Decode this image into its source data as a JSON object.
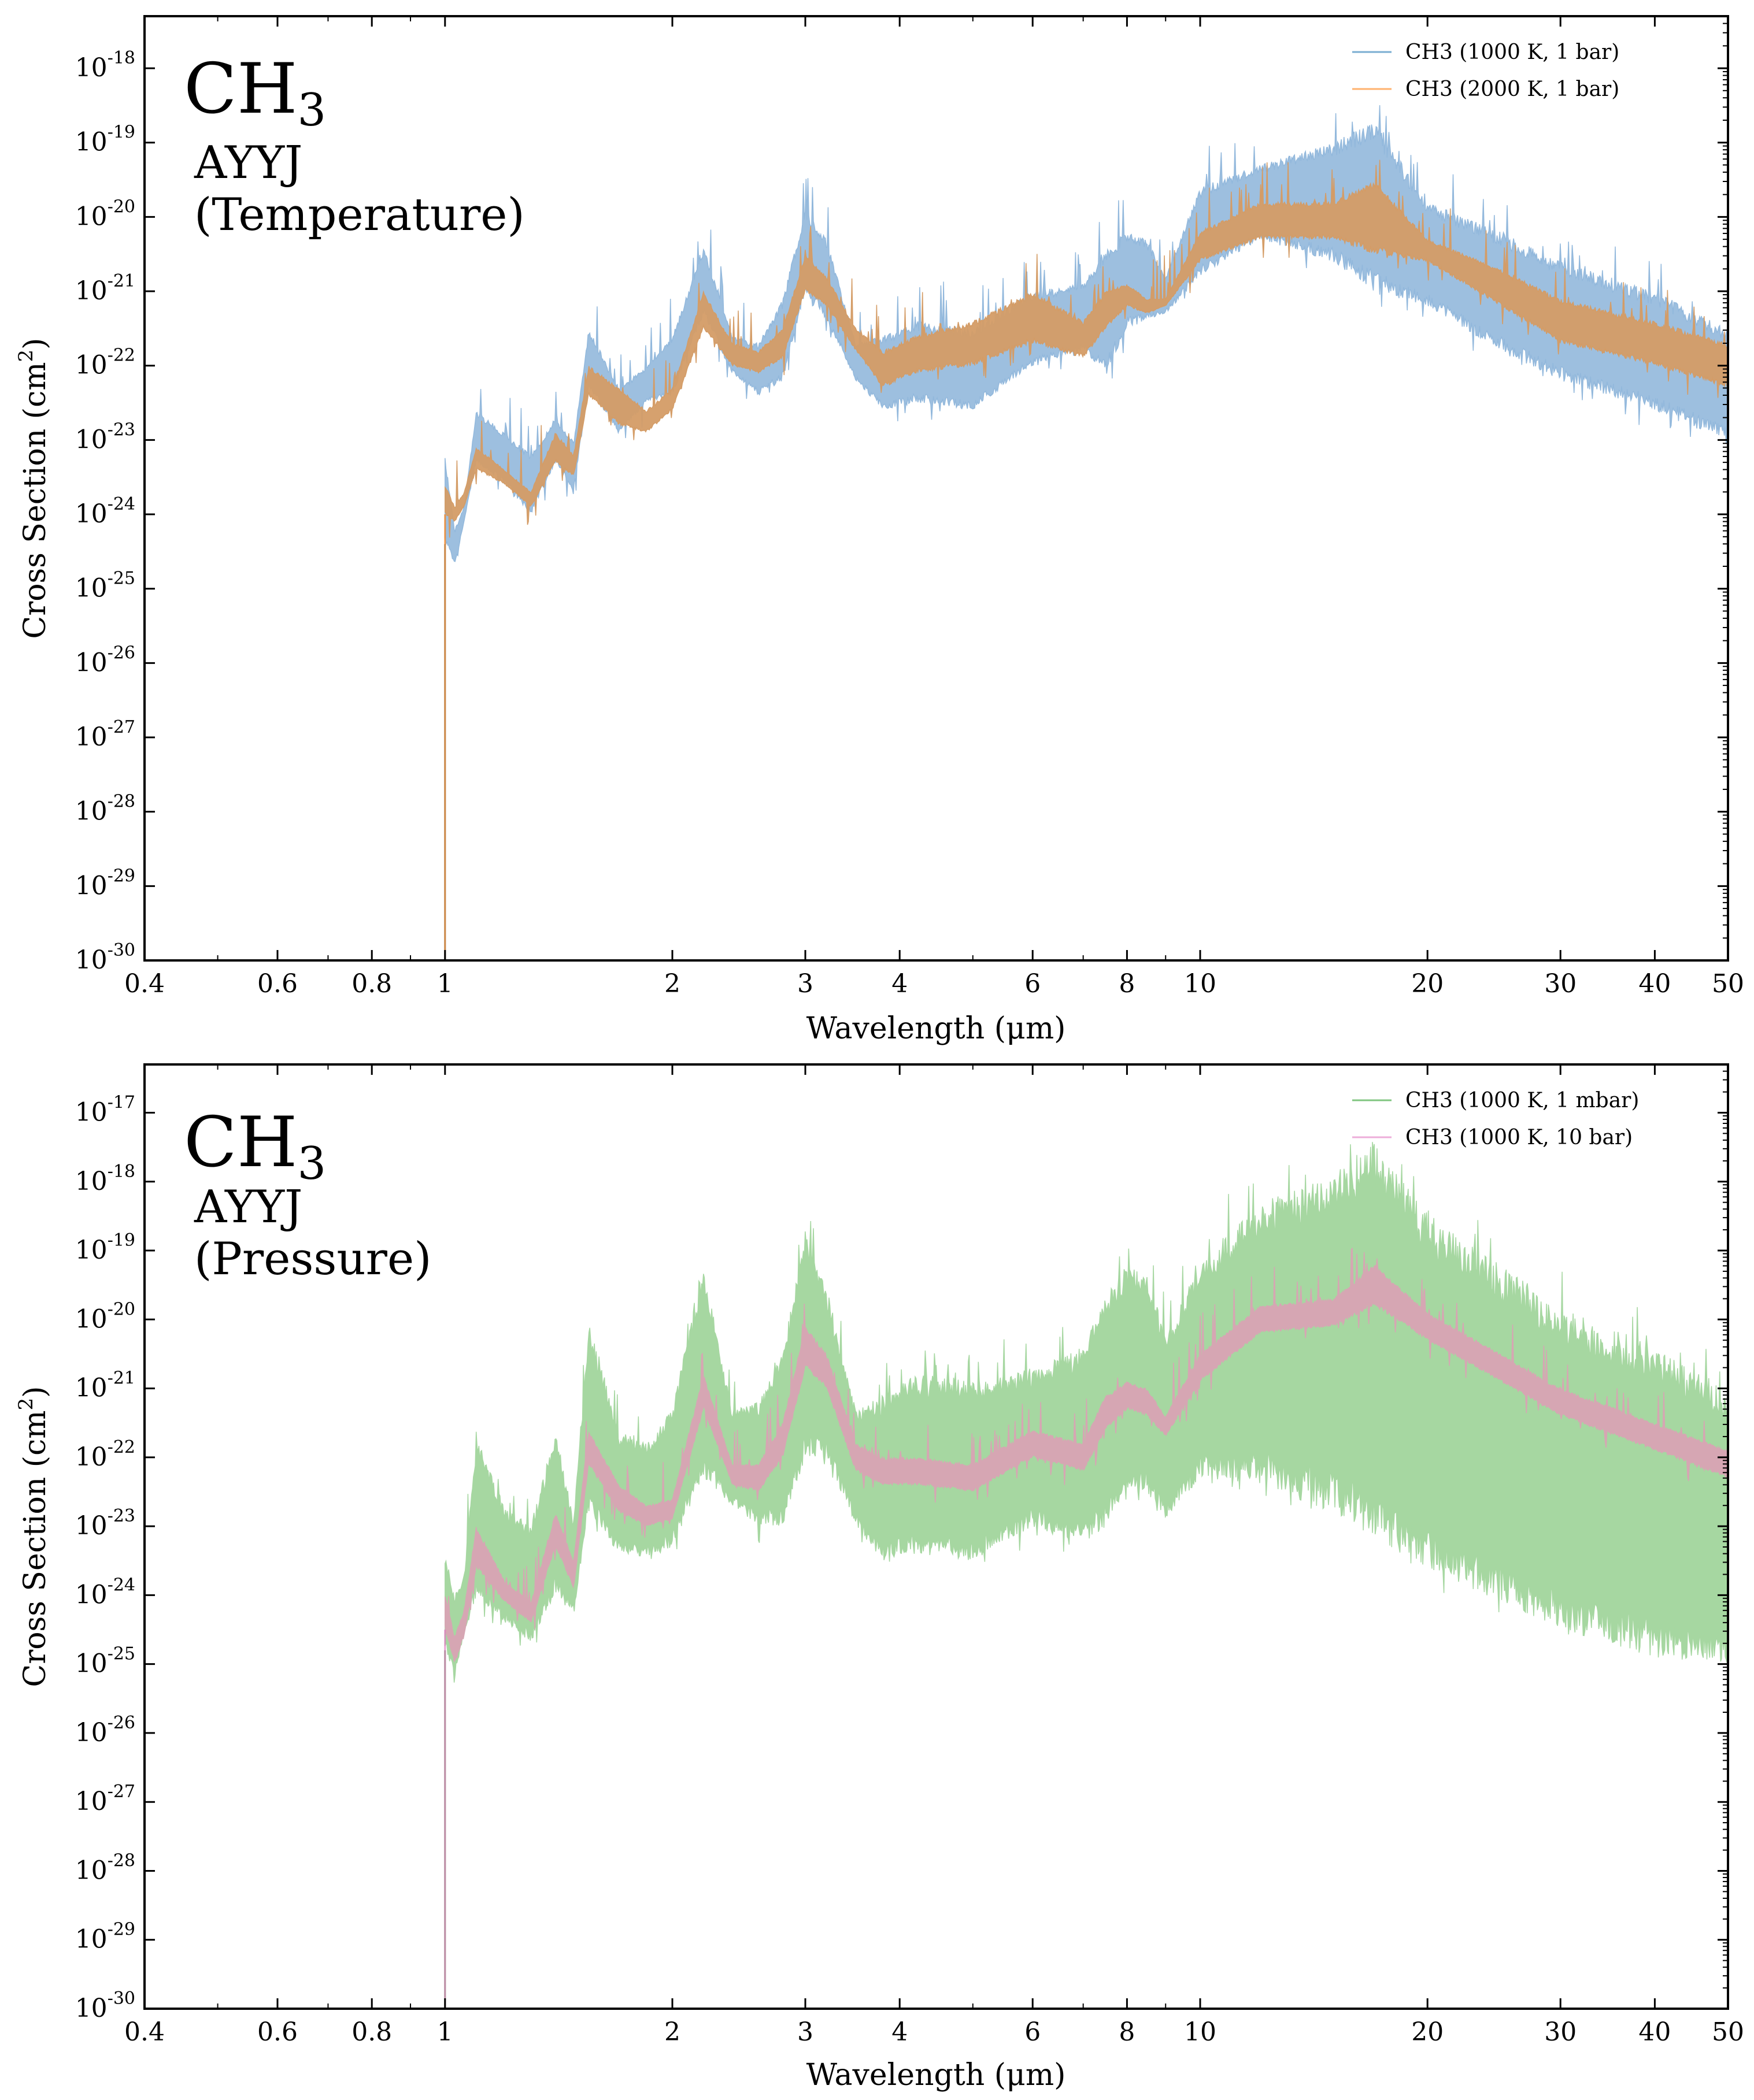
{
  "chart_data": [
    {
      "type": "area",
      "panel": "temperature",
      "annotation": {
        "species": "CH",
        "species_sub": "3",
        "line_list": "AYYJ",
        "variant": "(Temperature)"
      },
      "xlabel": "Wavelength (μm)",
      "ylabel": "Cross Section (cm²)",
      "ylabel_parts": {
        "main": "Cross Section (cm",
        "sup": "2",
        "close": ")"
      },
      "xscale": "log",
      "yscale": "log",
      "xlim": [
        0.4,
        50
      ],
      "ylim_exp": [
        -30,
        -17.3
      ],
      "xticks": [
        0.4,
        0.6,
        0.8,
        1,
        2,
        3,
        4,
        6,
        8,
        10,
        20,
        30,
        40,
        50
      ],
      "xtick_labels": [
        "0.4",
        "0.6",
        "0.8",
        "1",
        "2",
        "3",
        "4",
        "6",
        "8",
        "10",
        "20",
        "30",
        "40",
        "50"
      ],
      "yticks_exp": [
        -30,
        -29,
        -28,
        -27,
        -26,
        -25,
        -24,
        -23,
        -22,
        -21,
        -20,
        -19,
        -18
      ],
      "legend_position": "top-right",
      "series": [
        {
          "name": "CH3 (1000 K, 1 bar)",
          "color": "#1f77b4",
          "fill": "#92b8dc",
          "opacity": 0.9,
          "x": [
            1.0,
            1.03,
            1.06,
            1.1,
            1.2,
            1.3,
            1.4,
            1.48,
            1.55,
            1.7,
            1.85,
            2.0,
            2.2,
            2.4,
            2.6,
            2.8,
            3.0,
            3.2,
            3.5,
            3.8,
            4.2,
            5.0,
            6.0,
            7.0,
            7.5,
            8.0,
            8.5,
            9.0,
            10.0,
            12.0,
            15.0,
            17.0,
            20.0,
            25.0,
            30.0,
            40.0,
            50.0
          ],
          "upper_exp": [
            -23.2,
            -24.2,
            -23.9,
            -22.6,
            -22.9,
            -23.2,
            -22.7,
            -23.0,
            -21.5,
            -22.3,
            -22.0,
            -21.6,
            -20.4,
            -21.6,
            -21.7,
            -21.1,
            -19.9,
            -20.3,
            -21.7,
            -21.6,
            -21.4,
            -21.5,
            -21.0,
            -20.9,
            -20.4,
            -20.2,
            -20.3,
            -20.8,
            -19.6,
            -19.3,
            -19.0,
            -18.7,
            -19.8,
            -20.2,
            -20.6,
            -21.0,
            -21.5
          ],
          "lower_exp": [
            -24.4,
            -24.7,
            -24.1,
            -23.3,
            -23.6,
            -24.0,
            -23.3,
            -23.7,
            -22.3,
            -22.9,
            -22.5,
            -22.4,
            -21.3,
            -22.1,
            -22.4,
            -22.2,
            -21.0,
            -21.4,
            -22.2,
            -22.6,
            -22.5,
            -22.6,
            -22.0,
            -21.8,
            -22.1,
            -21.5,
            -21.4,
            -21.3,
            -20.8,
            -20.3,
            -20.6,
            -21.0,
            -21.2,
            -21.8,
            -22.2,
            -22.6,
            -23.0
          ]
        },
        {
          "name": "CH3 (2000 K, 1 bar)",
          "color": "#ff7f0e",
          "fill": "#d49c66",
          "opacity": 0.95,
          "x": [
            1.0,
            1.03,
            1.06,
            1.1,
            1.2,
            1.3,
            1.4,
            1.48,
            1.55,
            1.7,
            1.85,
            2.0,
            2.2,
            2.4,
            2.6,
            2.8,
            3.0,
            3.2,
            3.5,
            3.8,
            4.2,
            5.0,
            6.0,
            7.0,
            7.5,
            8.0,
            8.5,
            9.0,
            10.0,
            12.0,
            15.0,
            17.0,
            20.0,
            25.0,
            30.0,
            40.0,
            50.0
          ],
          "upper_exp": [
            -23.6,
            -23.9,
            -23.7,
            -23.1,
            -23.4,
            -23.7,
            -22.9,
            -23.2,
            -22.0,
            -22.3,
            -22.6,
            -22.3,
            -21.0,
            -21.7,
            -21.8,
            -21.5,
            -20.5,
            -20.8,
            -21.5,
            -21.8,
            -21.6,
            -21.4,
            -21.0,
            -21.4,
            -21.0,
            -20.9,
            -21.1,
            -21.1,
            -20.2,
            -19.8,
            -19.8,
            -19.5,
            -20.3,
            -20.7,
            -21.1,
            -21.4,
            -21.7
          ],
          "lower_exp": [
            -24.0,
            -24.1,
            -23.9,
            -23.4,
            -23.6,
            -23.9,
            -23.3,
            -23.5,
            -22.4,
            -22.8,
            -22.9,
            -22.6,
            -21.5,
            -22.0,
            -22.1,
            -21.9,
            -21.0,
            -21.2,
            -21.8,
            -22.3,
            -22.1,
            -22.0,
            -21.7,
            -21.9,
            -21.5,
            -21.2,
            -21.3,
            -21.2,
            -20.6,
            -20.3,
            -20.3,
            -20.5,
            -20.6,
            -21.2,
            -21.7,
            -22.0,
            -22.3
          ]
        }
      ]
    },
    {
      "type": "area",
      "panel": "pressure",
      "annotation": {
        "species": "CH",
        "species_sub": "3",
        "line_list": "AYYJ",
        "variant": "(Pressure)"
      },
      "xlabel": "Wavelength (μm)",
      "ylabel": "Cross Section (cm²)",
      "ylabel_parts": {
        "main": "Cross Section (cm",
        "sup": "2",
        "close": ")"
      },
      "xscale": "log",
      "yscale": "log",
      "xlim": [
        0.4,
        50
      ],
      "ylim_exp": [
        -30,
        -16.3
      ],
      "xticks": [
        0.4,
        0.6,
        0.8,
        1,
        2,
        3,
        4,
        6,
        8,
        10,
        20,
        30,
        40,
        50
      ],
      "xtick_labels": [
        "0.4",
        "0.6",
        "0.8",
        "1",
        "2",
        "3",
        "4",
        "6",
        "8",
        "10",
        "20",
        "30",
        "40",
        "50"
      ],
      "yticks_exp": [
        -30,
        -29,
        -28,
        -27,
        -26,
        -25,
        -24,
        -23,
        -22,
        -21,
        -20,
        -19,
        -18,
        -17
      ],
      "legend_position": "top-right",
      "series": [
        {
          "name": "CH3 (1000 K, 1 mbar)",
          "color": "#2ca02c",
          "fill": "#a6d7a1",
          "opacity": 1.0,
          "x": [
            1.0,
            1.03,
            1.06,
            1.1,
            1.2,
            1.3,
            1.4,
            1.48,
            1.55,
            1.7,
            1.85,
            2.0,
            2.2,
            2.4,
            2.6,
            2.8,
            3.0,
            3.2,
            3.5,
            3.8,
            4.2,
            5.0,
            6.0,
            7.0,
            7.5,
            8.0,
            8.5,
            9.0,
            10.0,
            12.0,
            15.0,
            17.0,
            20.0,
            25.0,
            30.0,
            40.0,
            50.0
          ],
          "upper_exp": [
            -23.4,
            -24.0,
            -23.7,
            -21.7,
            -22.7,
            -23.0,
            -21.6,
            -22.9,
            -20.0,
            -21.6,
            -21.8,
            -21.3,
            -19.2,
            -21.3,
            -21.2,
            -20.5,
            -18.7,
            -19.6,
            -21.3,
            -21.1,
            -20.8,
            -20.9,
            -20.7,
            -20.4,
            -19.6,
            -19.2,
            -19.3,
            -20.2,
            -19.2,
            -18.3,
            -17.9,
            -17.4,
            -18.5,
            -19.2,
            -19.8,
            -20.4,
            -21.0
          ],
          "lower_exp": [
            -24.8,
            -25.2,
            -24.6,
            -24.0,
            -24.4,
            -24.7,
            -24.0,
            -24.3,
            -22.8,
            -23.4,
            -23.5,
            -23.3,
            -22.3,
            -22.7,
            -23.0,
            -23.0,
            -22.0,
            -22.0,
            -23.0,
            -23.5,
            -23.4,
            -23.5,
            -23.0,
            -23.3,
            -23.0,
            -22.6,
            -22.5,
            -22.9,
            -22.3,
            -22.4,
            -22.8,
            -23.2,
            -23.6,
            -24.1,
            -24.5,
            -24.9,
            -25.0
          ]
        },
        {
          "name": "CH3 (1000 K, 10 bar)",
          "color": "#e377c2",
          "fill": "#d6a6b3",
          "opacity": 1.0,
          "x": [
            1.0,
            1.03,
            1.06,
            1.1,
            1.2,
            1.3,
            1.4,
            1.48,
            1.55,
            1.7,
            1.85,
            2.0,
            2.2,
            2.4,
            2.6,
            2.8,
            3.0,
            3.2,
            3.5,
            3.8,
            4.2,
            5.0,
            6.0,
            7.0,
            7.5,
            8.0,
            8.5,
            9.0,
            10.0,
            12.0,
            15.0,
            17.0,
            20.0,
            25.0,
            30.0,
            40.0,
            50.0
          ],
          "upper_exp": [
            -24.0,
            -24.6,
            -24.2,
            -23.0,
            -23.8,
            -24.1,
            -22.8,
            -23.5,
            -21.6,
            -22.4,
            -22.7,
            -22.6,
            -20.8,
            -22.1,
            -22.1,
            -21.5,
            -20.1,
            -20.5,
            -21.8,
            -22.0,
            -22.0,
            -22.1,
            -21.6,
            -21.8,
            -21.1,
            -20.9,
            -21.0,
            -21.4,
            -20.5,
            -19.8,
            -19.7,
            -19.2,
            -19.9,
            -20.5,
            -21.0,
            -21.5,
            -21.9
          ],
          "lower_exp": [
            -24.5,
            -25.0,
            -24.6,
            -23.6,
            -24.1,
            -24.4,
            -23.3,
            -23.9,
            -22.1,
            -22.8,
            -23.0,
            -22.9,
            -21.3,
            -22.4,
            -22.5,
            -22.0,
            -20.7,
            -21.0,
            -22.2,
            -22.4,
            -22.4,
            -22.5,
            -22.0,
            -22.2,
            -21.6,
            -21.3,
            -21.4,
            -21.7,
            -20.9,
            -20.2,
            -20.1,
            -19.8,
            -20.3,
            -20.9,
            -21.4,
            -21.9,
            -22.3
          ]
        }
      ]
    }
  ]
}
